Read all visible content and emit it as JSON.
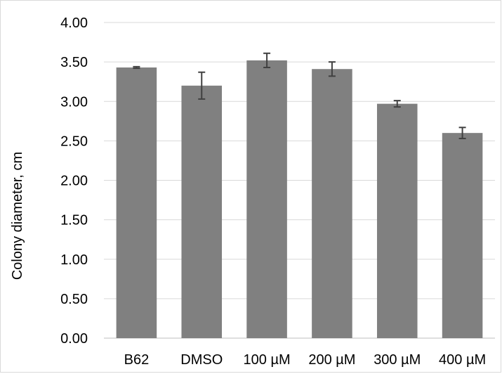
{
  "chart_data": {
    "type": "bar",
    "title": "",
    "xlabel": "",
    "ylabel": "Colony diameter, cm",
    "ylim": [
      0,
      4
    ],
    "yticks": [
      "0.00",
      "0.50",
      "1.00",
      "1.50",
      "2.00",
      "2.50",
      "3.00",
      "3.50",
      "4.00"
    ],
    "grid": true,
    "legend": "none",
    "categories": [
      "B62",
      "DMSO",
      "100 µM",
      "200 µM",
      "300 µM",
      "400 µM"
    ],
    "values": [
      3.43,
      3.2,
      3.52,
      3.41,
      2.97,
      2.6
    ],
    "errors": [
      0.01,
      0.17,
      0.09,
      0.09,
      0.04,
      0.07
    ],
    "colors": {
      "bar": "#808080",
      "error_bar": "#404040",
      "grid": "#d9d9d9",
      "axis": "#bfbfbf"
    }
  }
}
